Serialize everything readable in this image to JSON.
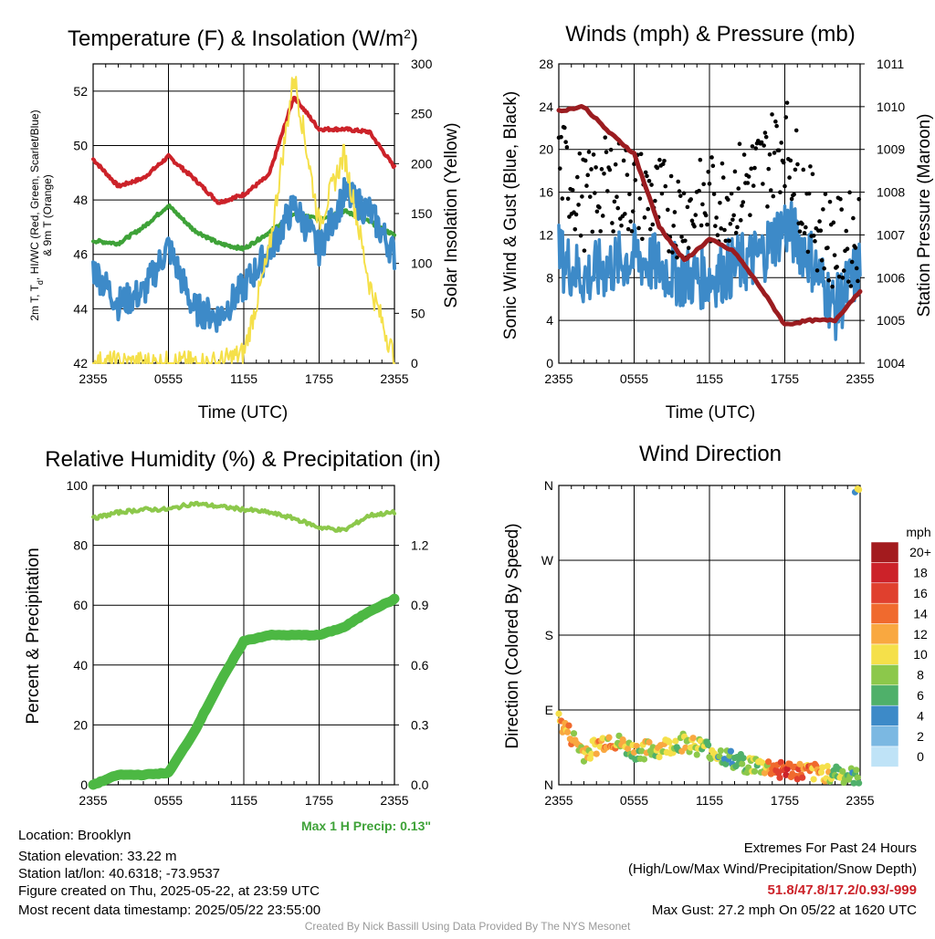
{
  "x_ticks": [
    "2355",
    "0555",
    "1155",
    "1755",
    "2355"
  ],
  "chart_data": [
    {
      "type": "line",
      "title": "Temperature (F) & Insolation (W/m²)",
      "title_main": "Temperature (F) & Insolation (W/m",
      "title_sup": "2",
      "title_end": ")",
      "xlabel": "Time (UTC)",
      "ylabel_left_1": "2m T, T",
      "ylabel_left_sub": "d",
      "ylabel_left_2": ", HI/WC (Red, Green, Scarlet/Blue)",
      "ylabel_left_line2": "& 9m T (Orange)",
      "ylabel_right": "Solar Insolation (Yellow)",
      "ylim_left": [
        42,
        53
      ],
      "ylim_right": [
        0,
        300
      ],
      "yticks_left": [
        "42",
        "44",
        "46",
        "48",
        "50",
        "52"
      ],
      "yticks_right": [
        "0",
        "50",
        "100",
        "150",
        "200",
        "250",
        "300"
      ],
      "x_hours": [
        0,
        2,
        4,
        6,
        8,
        10,
        12,
        14,
        16,
        18,
        20,
        22,
        24
      ],
      "series": [
        {
          "name": "2m T",
          "color": "#cc2229",
          "axis": "left",
          "values": [
            49.5,
            48.5,
            48.8,
            49.6,
            48.8,
            47.9,
            48.2,
            48.9,
            51.8,
            50.6,
            50.6,
            50.5,
            49.2
          ]
        },
        {
          "name": "Td",
          "color": "#3ea238",
          "axis": "left",
          "values": [
            46.5,
            46.4,
            47.0,
            47.8,
            46.9,
            46.4,
            46.2,
            46.8,
            47.5,
            47.3,
            47.6,
            47.2,
            46.7
          ]
        },
        {
          "name": "HI/WC",
          "color": "#3d8ac8",
          "axis": "left",
          "values": [
            45.5,
            44.2,
            44.6,
            46.3,
            44.0,
            43.7,
            44.8,
            46.1,
            47.8,
            46.2,
            48.2,
            47.6,
            46.0
          ]
        },
        {
          "name": "Solar Insolation",
          "color": "#f5e04a",
          "axis": "right",
          "values": [
            0,
            0,
            0,
            0,
            0,
            0,
            10,
            110,
            290,
            140,
            210,
            80,
            5
          ]
        }
      ]
    },
    {
      "type": "line",
      "title": "Winds (mph) & Pressure (mb)",
      "xlabel": "Time (UTC)",
      "ylabel_left": "Sonic Wind & Gust (Blue, Black)",
      "ylabel_right": "Station Pressure (Maroon)",
      "ylim_left": [
        0,
        28
      ],
      "ylim_right": [
        1004,
        1011
      ],
      "yticks_left": [
        "0",
        "4",
        "8",
        "12",
        "16",
        "20",
        "24",
        "28"
      ],
      "yticks_right": [
        "1004",
        "1005",
        "1006",
        "1007",
        "1008",
        "1009",
        "1010",
        "1011"
      ],
      "x_hours": [
        0,
        2,
        4,
        6,
        8,
        10,
        12,
        14,
        16,
        18,
        20,
        22,
        24
      ],
      "series": [
        {
          "name": "Sonic Wind",
          "color": "#3d8ac8",
          "axis": "left",
          "values": [
            10,
            8,
            9,
            10,
            9,
            8,
            8,
            9,
            10,
            13,
            10,
            5,
            9
          ]
        },
        {
          "name": "Gust",
          "color": "#000000",
          "axis": "left",
          "style": "points",
          "values": [
            19,
            15,
            17,
            16,
            15,
            14,
            15,
            16,
            18,
            21,
            14,
            11,
            12
          ]
        },
        {
          "name": "Station Pressure",
          "color": "#9b1c20",
          "axis": "right",
          "values": [
            1009.9,
            1010.0,
            1009.4,
            1008.9,
            1007.2,
            1006.4,
            1006.9,
            1006.6,
            1005.8,
            1004.9,
            1005.0,
            1005.0,
            1005.7
          ]
        }
      ]
    },
    {
      "type": "line",
      "title": "Relative Humidity (%) & Precipitation (in)",
      "xlabel": "",
      "ylabel_left": "Percent & Precipitation",
      "ylim_left": [
        0,
        100
      ],
      "ylim_right": [
        0,
        1.5
      ],
      "yticks_left": [
        "0",
        "20",
        "40",
        "60",
        "80",
        "100"
      ],
      "yticks_right": [
        "0.0",
        "0.3",
        "0.6",
        "0.9",
        "1.2"
      ],
      "x_hours": [
        0,
        2,
        4,
        6,
        8,
        10,
        12,
        14,
        16,
        18,
        20,
        22,
        24
      ],
      "series": [
        {
          "name": "Relative Humidity",
          "color": "#8cc84b",
          "axis": "left",
          "values": [
            89,
            91,
            92,
            92,
            94,
            93,
            92,
            91,
            89,
            86,
            85,
            90,
            91
          ]
        },
        {
          "name": "Precipitation",
          "color": "#4cb843",
          "axis": "right",
          "values": [
            0.0,
            0.05,
            0.05,
            0.06,
            0.26,
            0.5,
            0.72,
            0.75,
            0.75,
            0.75,
            0.79,
            0.87,
            0.93
          ]
        }
      ],
      "annotation": "Max 1 H Precip: 0.13\""
    },
    {
      "type": "scatter",
      "title": "Wind Direction",
      "xlabel": "",
      "ylabel_left": "Direction (Colored By Speed)",
      "yticks_left": [
        "N",
        "E",
        "S",
        "W",
        "N"
      ],
      "ylim_left": [
        0,
        360
      ],
      "x_hours": [
        0,
        2,
        4,
        6,
        8,
        10,
        12,
        14,
        16,
        18,
        20,
        22,
        24
      ],
      "directions": [
        77,
        38,
        55,
        40,
        43,
        52,
        42,
        28,
        22,
        18,
        14,
        15,
        6
      ],
      "speeds": [
        12,
        10,
        11,
        9,
        10,
        9,
        8,
        7,
        9,
        16,
        12,
        8,
        6
      ],
      "colorbar": {
        "title": "mph",
        "labels": [
          "20+",
          "18",
          "16",
          "14",
          "12",
          "10",
          "8",
          "6",
          "4",
          "2",
          "0"
        ],
        "colors": [
          "#a31b1e",
          "#cc2229",
          "#e0402e",
          "#f06a2e",
          "#f9a840",
          "#f5e04a",
          "#8cc84b",
          "#4fb06a",
          "#3d8ac8",
          "#7bb8e2",
          "#bfe3f7"
        ]
      }
    }
  ],
  "footer": {
    "location": "Location: Brooklyn",
    "elevation": "Station elevation: 33.22 m",
    "latlon": "Station lat/lon: 40.6318; -73.9537",
    "created": "Figure created on Thu, 2025-05-22, at 23:59 UTC",
    "recent": "Most recent data timestamp: 2025/05/22 23:55:00",
    "extremes_title": "Extremes For Past 24 Hours",
    "extremes_legend": "(High/Low/Max Wind/Precipitation/Snow Depth)",
    "extremes_values": "51.8/47.8/17.2/0.93/-999",
    "max_gust": "Max Gust: 27.2 mph On 05/22 at 1620 UTC",
    "credit": "Created By Nick Bassill Using Data Provided By The NYS Mesonet"
  }
}
